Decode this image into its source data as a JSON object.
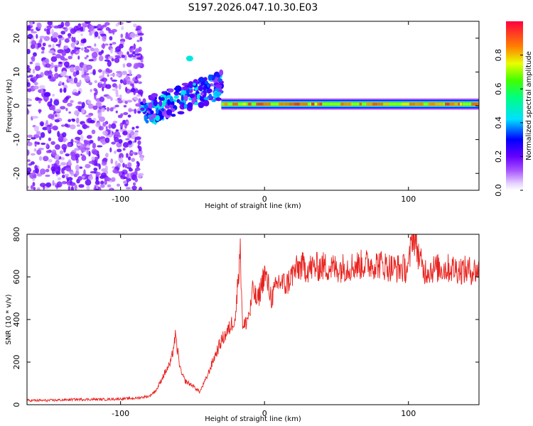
{
  "page": {
    "title": "S197.2026.047.10.30.E03"
  },
  "colors": {
    "snr_line": "#e8221e",
    "frame": "#000000",
    "background": "#ffffff"
  },
  "chart_data": [
    {
      "type": "heatmap",
      "name": "spectrogram",
      "title": "S197.2026.047.10.30.E03",
      "xlabel": "Height of straight line (km)",
      "ylabel": "Frequency (Hz)",
      "xlim": [
        -165,
        149
      ],
      "ylim": [
        -25,
        25
      ],
      "xticks": [
        -100,
        0,
        100
      ],
      "yticks": [
        -20,
        -10,
        0,
        10,
        20
      ],
      "xtick_labels": [
        "-100",
        "0",
        "100"
      ],
      "ytick_labels": [
        "-20",
        "-10",
        "0",
        "10",
        "20"
      ],
      "colorbar": {
        "label": "Normalized spectral amplitude",
        "range": [
          0,
          1
        ],
        "ticks": [
          0.0,
          0.2,
          0.4,
          0.6,
          0.8
        ],
        "tick_labels": [
          "0.0",
          "0.2",
          "0.4",
          "0.6",
          "0.8"
        ],
        "colormap": "rainbow"
      },
      "features": [
        {
          "description": "broadband noise",
          "x_range": [
            -165,
            -85
          ],
          "freq_range": [
            -25,
            25
          ],
          "amplitude": 0.05
        },
        {
          "description": "scattered detections",
          "x_range": [
            -85,
            -30
          ],
          "freq_range": [
            -5,
            15
          ],
          "amplitude": 0.35
        },
        {
          "description": "narrowband trace",
          "x_range": [
            -30,
            149
          ],
          "freq_center": 0.5,
          "amplitude_peak": 0.95
        }
      ]
    },
    {
      "type": "line",
      "name": "snr",
      "xlabel": "Height of straight line (km)",
      "ylabel": "SNR (10 * v/v)",
      "xlim": [
        -165,
        149
      ],
      "ylim": [
        0,
        800
      ],
      "xticks": [
        -100,
        0,
        100
      ],
      "yticks": [
        0,
        200,
        400,
        600,
        800
      ],
      "xtick_labels": [
        "-100",
        "0",
        "100"
      ],
      "ytick_labels": [
        "0",
        "200",
        "400",
        "600",
        "800"
      ],
      "series": [
        {
          "name": "SNR",
          "x": [
            -165,
            -150,
            -130,
            -110,
            -90,
            -80,
            -75,
            -70,
            -65,
            -62,
            -58,
            -55,
            -50,
            -45,
            -40,
            -35,
            -30,
            -25,
            -20,
            -17,
            -15,
            -10,
            -8,
            -5,
            0,
            5,
            10,
            15,
            20,
            25,
            30,
            40,
            50,
            60,
            70,
            80,
            90,
            100,
            103,
            110,
            120,
            130,
            140,
            149
          ],
          "y": [
            20,
            20,
            25,
            25,
            30,
            40,
            70,
            140,
            200,
            320,
            150,
            110,
            90,
            60,
            130,
            220,
            300,
            350,
            420,
            740,
            350,
            440,
            540,
            480,
            620,
            500,
            580,
            560,
            620,
            650,
            640,
            650,
            640,
            650,
            660,
            660,
            640,
            640,
            810,
            630,
            640,
            640,
            630,
            630
          ]
        }
      ]
    }
  ]
}
